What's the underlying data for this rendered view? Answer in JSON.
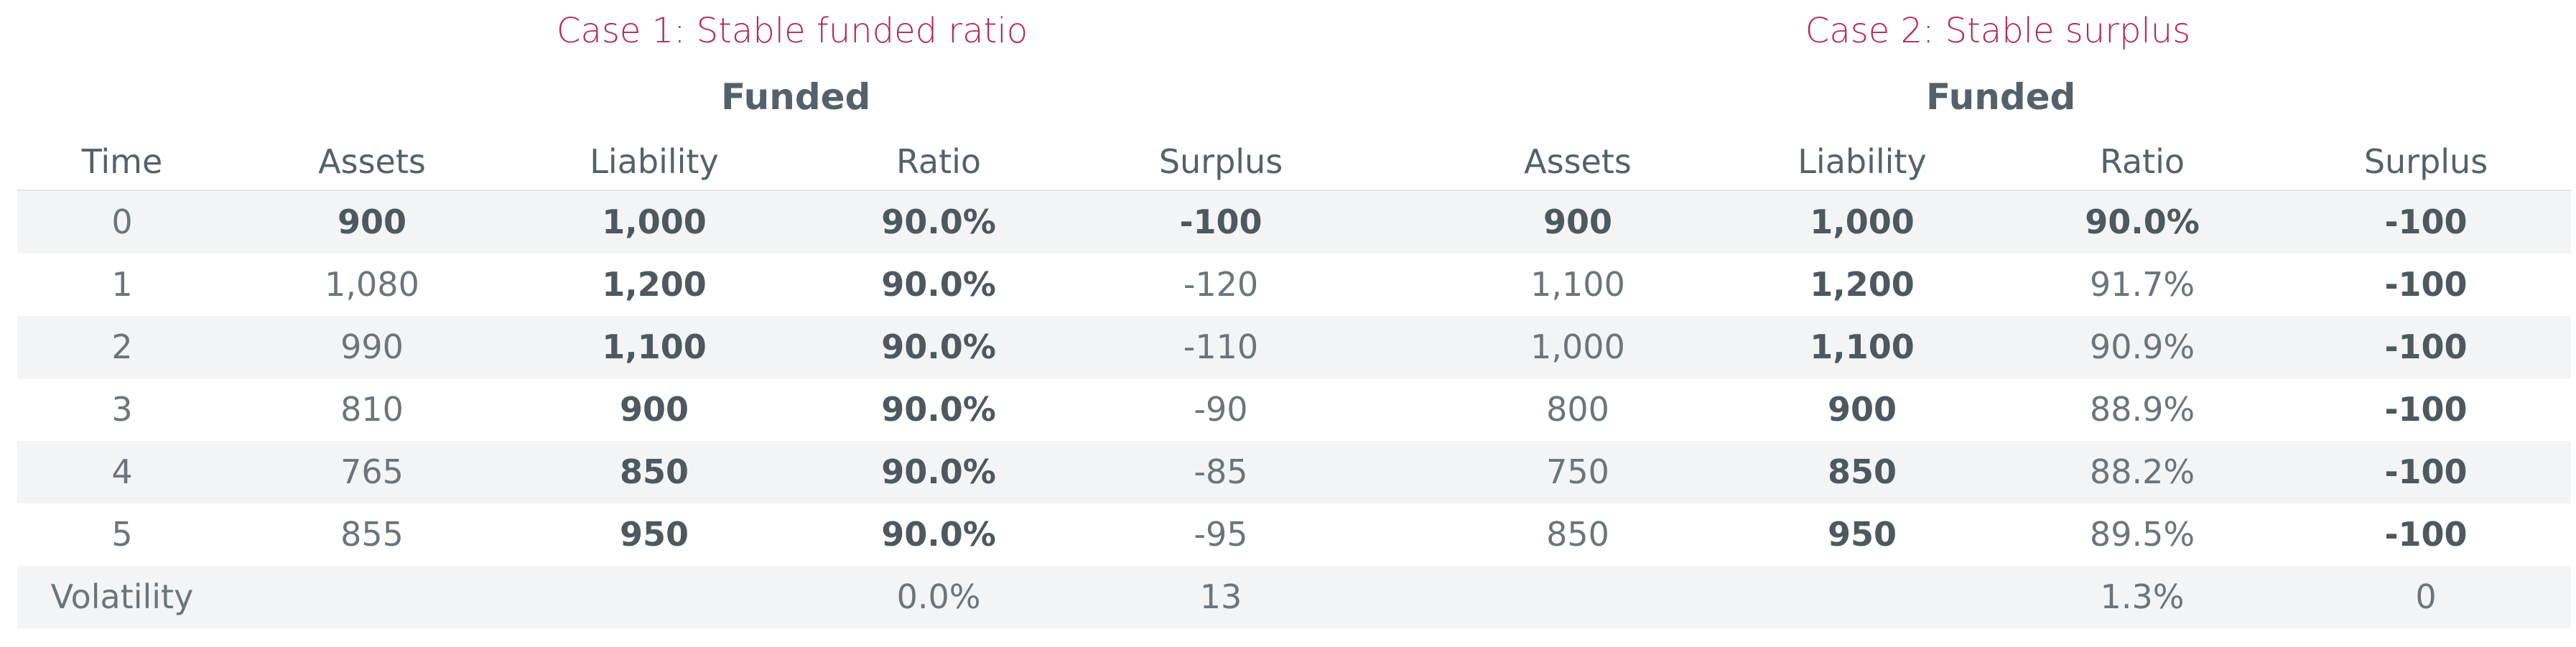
{
  "case1_title": "Case 1: Stable funded ratio",
  "case2_title": "Case 2: Stable surplus",
  "funded_label": "Funded",
  "headers": {
    "time": "Time",
    "assets": "Assets",
    "liability": "Liability",
    "ratio": "Ratio",
    "surplus": "Surplus"
  },
  "rows": [
    {
      "time": "0",
      "c1_assets": "900",
      "c1_liability": "1,000",
      "c1_ratio": "90.0%",
      "c1_surplus": "-100",
      "c2_assets": "900",
      "c2_liability": "1,000",
      "c2_ratio": "90.0%",
      "c2_surplus": "-100"
    },
    {
      "time": "1",
      "c1_assets": "1,080",
      "c1_liability": "1,200",
      "c1_ratio": "90.0%",
      "c1_surplus": "-120",
      "c2_assets": "1,100",
      "c2_liability": "1,200",
      "c2_ratio": "91.7%",
      "c2_surplus": "-100"
    },
    {
      "time": "2",
      "c1_assets": "990",
      "c1_liability": "1,100",
      "c1_ratio": "90.0%",
      "c1_surplus": "-110",
      "c2_assets": "1,000",
      "c2_liability": "1,100",
      "c2_ratio": "90.9%",
      "c2_surplus": "-100"
    },
    {
      "time": "3",
      "c1_assets": "810",
      "c1_liability": "900",
      "c1_ratio": "90.0%",
      "c1_surplus": "-90",
      "c2_assets": "800",
      "c2_liability": "900",
      "c2_ratio": "88.9%",
      "c2_surplus": "-100"
    },
    {
      "time": "4",
      "c1_assets": "765",
      "c1_liability": "850",
      "c1_ratio": "90.0%",
      "c1_surplus": "-85",
      "c2_assets": "750",
      "c2_liability": "850",
      "c2_ratio": "88.2%",
      "c2_surplus": "-100"
    },
    {
      "time": "5",
      "c1_assets": "855",
      "c1_liability": "950",
      "c1_ratio": "90.0%",
      "c1_surplus": "-95",
      "c2_assets": "850",
      "c2_liability": "950",
      "c2_ratio": "89.5%",
      "c2_surplus": "-100"
    }
  ],
  "volatility": {
    "label": "Volatility",
    "c1_ratio": "0.0%",
    "c1_surplus": "13",
    "c2_ratio": "1.3%",
    "c2_surplus": "0"
  },
  "colors": {
    "title_accent": "#b5285a",
    "header_text": "#55616a",
    "row_shade": "#f2f4f5"
  }
}
